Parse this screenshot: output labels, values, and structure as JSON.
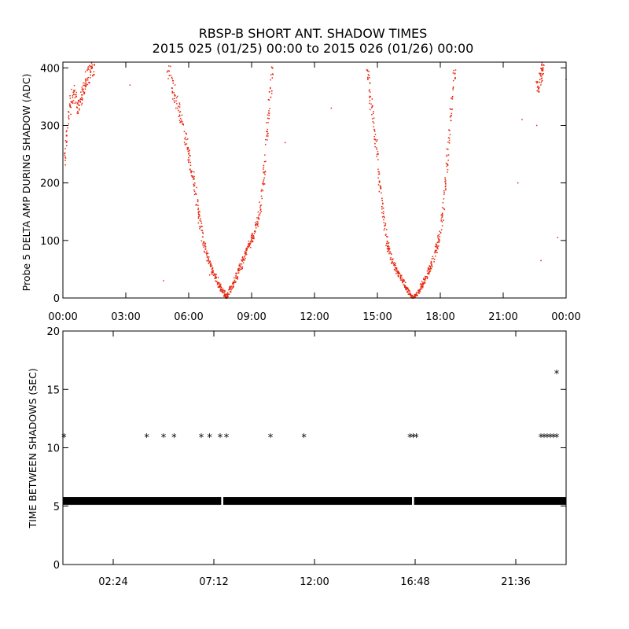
{
  "title_line1": "RBSP-B SHORT ANT. SHADOW TIMES",
  "title_line2": "2015 025 (01/25) 00:00 to 2015 026 (01/26) 00:00",
  "chart_data": [
    {
      "type": "scatter",
      "name": "probe5-delta-amp",
      "ylabel": "Probe 5 DELTA AMP DURING SHADOW (ADC)",
      "xlabel": "",
      "xlim": [
        0,
        24
      ],
      "ylim": [
        0,
        410
      ],
      "x_ticks": [
        0,
        3,
        6,
        9,
        12,
        15,
        18,
        21,
        24
      ],
      "x_tick_labels": [
        "00:00",
        "03:00",
        "06:00",
        "09:00",
        "12:00",
        "15:00",
        "18:00",
        "21:00",
        "00:00"
      ],
      "y_ticks": [
        0,
        100,
        200,
        300,
        400
      ],
      "y_tick_labels": [
        "0",
        "100",
        "200",
        "300",
        "400"
      ],
      "marker": "dot",
      "color": "#e8240c",
      "series": [
        {
          "name": "early-branch",
          "x": [
            0.05,
            0.3,
            0.5,
            0.7,
            0.9,
            1.1,
            1.3,
            1.5
          ],
          "y": [
            230,
            320,
            360,
            330,
            350,
            380,
            395,
            405
          ]
        },
        {
          "name": "minimum-1-descending",
          "x": [
            5.0,
            5.3,
            5.6,
            5.9,
            6.1,
            6.3,
            6.5,
            6.7,
            6.9,
            7.1,
            7.3,
            7.5,
            7.7,
            7.8
          ],
          "y": [
            400,
            360,
            320,
            270,
            230,
            190,
            140,
            100,
            70,
            50,
            35,
            20,
            8,
            0
          ]
        },
        {
          "name": "minimum-1-ascending",
          "x": [
            7.8,
            8.0,
            8.2,
            8.4,
            8.6,
            8.8,
            9.0,
            9.2,
            9.4,
            9.6,
            9.8,
            10.0
          ],
          "y": [
            0,
            15,
            30,
            48,
            65,
            85,
            100,
            120,
            150,
            220,
            320,
            400
          ]
        },
        {
          "name": "minimum-2-descending",
          "x": [
            14.5,
            14.7,
            14.9,
            15.1,
            15.3,
            15.5,
            15.7,
            15.9,
            16.1,
            16.3,
            16.5,
            16.7
          ],
          "y": [
            400,
            340,
            280,
            200,
            140,
            90,
            65,
            50,
            35,
            22,
            10,
            0
          ]
        },
        {
          "name": "minimum-2-ascending",
          "x": [
            16.7,
            16.9,
            17.1,
            17.3,
            17.5,
            17.7,
            17.9,
            18.1,
            18.3,
            18.5,
            18.7
          ],
          "y": [
            0,
            8,
            20,
            35,
            50,
            70,
            95,
            140,
            220,
            310,
            390
          ]
        },
        {
          "name": "late-branch",
          "x": [
            22.6,
            22.8,
            22.9
          ],
          "y": [
            360,
            380,
            400
          ]
        },
        {
          "name": "isolated",
          "x": [
            3.2,
            4.8,
            7.0,
            10.6,
            12.8,
            21.7,
            21.9,
            22.6,
            22.8,
            23.6,
            24.0
          ],
          "y": [
            370,
            30,
            40,
            270,
            330,
            200,
            310,
            300,
            65,
            105,
            380
          ]
        }
      ]
    },
    {
      "type": "scatter",
      "name": "time-between-shadows",
      "ylabel": "TIME BETWEEN SHADOWS (SEC)",
      "xlabel": "",
      "xlim": [
        0,
        24
      ],
      "ylim": [
        0,
        20
      ],
      "x_ticks": [
        2.4,
        7.2,
        12.0,
        16.8,
        21.6
      ],
      "x_tick_labels": [
        "02:24",
        "07:12",
        "12:00",
        "16:48",
        "21:36"
      ],
      "y_ticks": [
        0,
        5,
        10,
        15,
        20
      ],
      "y_tick_labels": [
        "0",
        "5",
        "10",
        "15",
        "20"
      ],
      "marker": "*",
      "color": "#000000",
      "baseline": {
        "value": 5.45,
        "x_range": [
          0,
          24
        ],
        "gaps": [
          7.6,
          16.7
        ]
      },
      "series": [
        {
          "name": "doubled-intervals",
          "x": [
            0.05,
            4.0,
            4.8,
            5.3,
            6.6,
            7.0,
            7.5,
            7.8,
            9.9,
            11.5,
            16.55,
            16.7,
            16.85,
            22.8,
            22.95,
            23.1,
            23.25,
            23.4,
            23.55
          ],
          "y": [
            10.9,
            10.9,
            10.9,
            10.9,
            10.9,
            10.9,
            10.9,
            10.9,
            10.9,
            10.9,
            10.9,
            10.9,
            10.9,
            10.9,
            10.9,
            10.9,
            10.9,
            10.9,
            10.9
          ]
        },
        {
          "name": "outlier",
          "x": [
            23.55
          ],
          "y": [
            16.35
          ]
        }
      ]
    }
  ]
}
